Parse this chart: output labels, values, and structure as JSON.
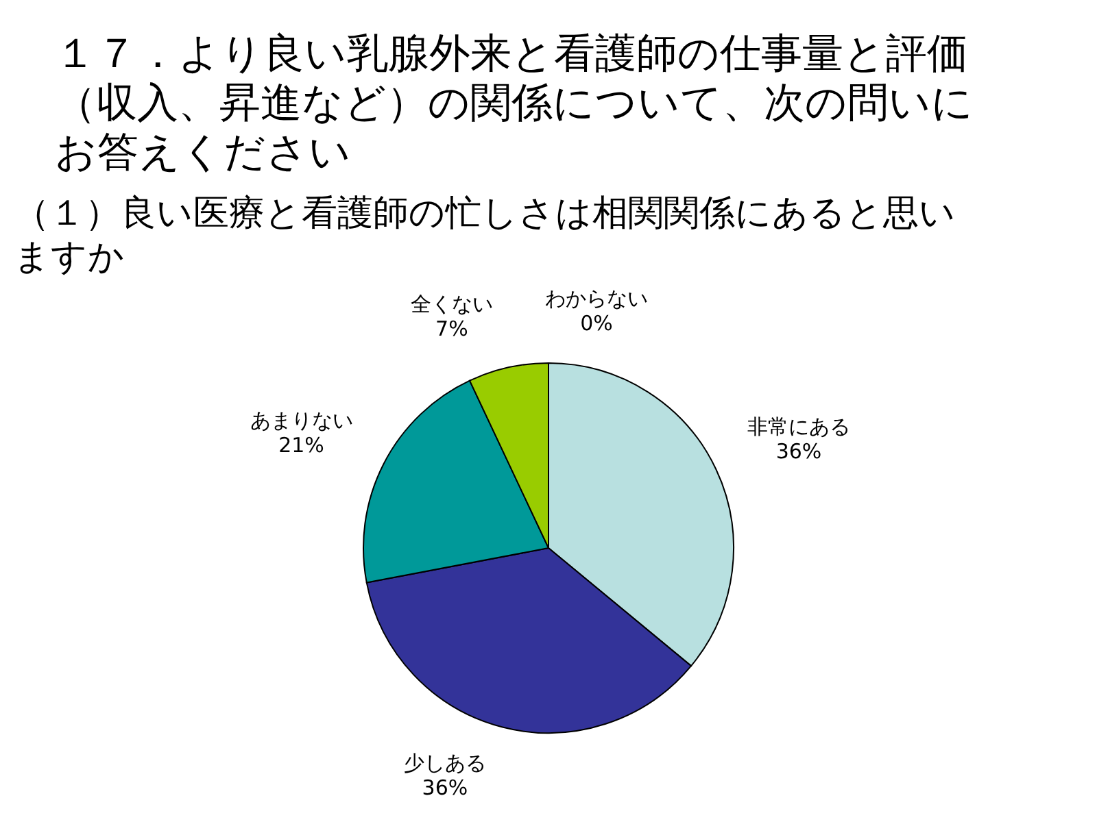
{
  "chart_data": {
    "type": "pie",
    "title": "１７．より良い乳腺外来と看護師の仕事量と評価（収入、昇進など）の関係について、次の問いにお答えください",
    "subtitle": "（１）良い医療と看護師の忙しさは相関関係にあると思いますか",
    "categories": [
      "非常にある",
      "少しある",
      "あまりない",
      "全くない",
      "わからない"
    ],
    "values": [
      36,
      36,
      21,
      7,
      0
    ],
    "colors": [
      "#b8e0e0",
      "#333399",
      "#009999",
      "#99cc00",
      "#ffff99"
    ],
    "value_labels": [
      "36%",
      "36%",
      "21%",
      "7%",
      "0%"
    ]
  }
}
